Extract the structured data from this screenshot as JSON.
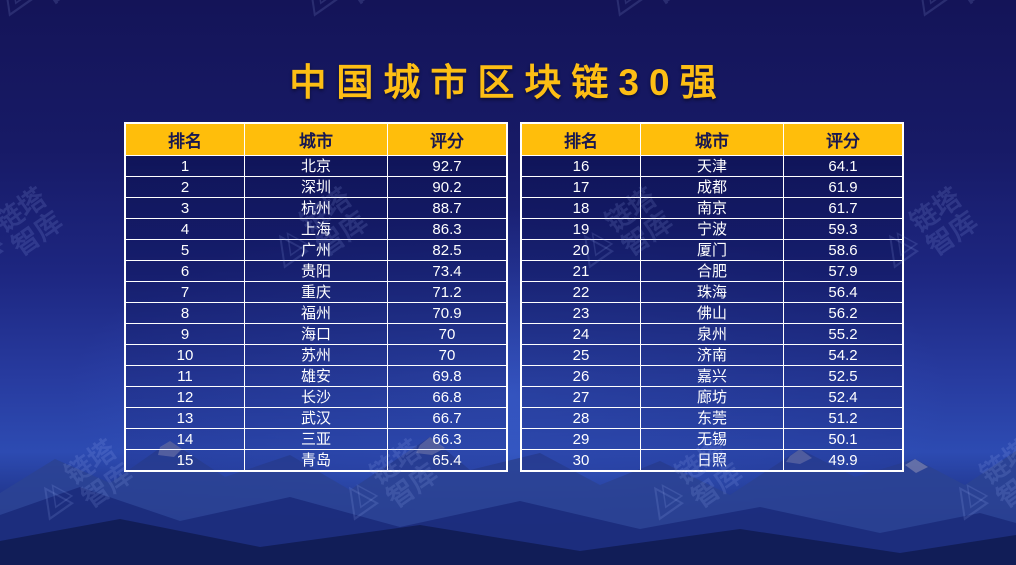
{
  "title": "中国城市区块链30强",
  "watermark": {
    "logo_glyph": "△",
    "text": "链塔智库"
  },
  "tables": [
    {
      "name": "ranks-1-15",
      "headers": [
        "排名",
        "城市",
        "评分"
      ],
      "rows": [
        [
          "1",
          "北京",
          "92.7"
        ],
        [
          "2",
          "深圳",
          "90.2"
        ],
        [
          "3",
          "杭州",
          "88.7"
        ],
        [
          "4",
          "上海",
          "86.3"
        ],
        [
          "5",
          "广州",
          "82.5"
        ],
        [
          "6",
          "贵阳",
          "73.4"
        ],
        [
          "7",
          "重庆",
          "71.2"
        ],
        [
          "8",
          "福州",
          "70.9"
        ],
        [
          "9",
          "海口",
          "70"
        ],
        [
          "10",
          "苏州",
          "70"
        ],
        [
          "11",
          "雄安",
          "69.8"
        ],
        [
          "12",
          "长沙",
          "66.8"
        ],
        [
          "13",
          "武汉",
          "66.7"
        ],
        [
          "14",
          "三亚",
          "66.3"
        ],
        [
          "15",
          "青岛",
          "65.4"
        ]
      ]
    },
    {
      "name": "ranks-16-30",
      "headers": [
        "排名",
        "城市",
        "评分"
      ],
      "rows": [
        [
          "16",
          "天津",
          "64.1"
        ],
        [
          "17",
          "成都",
          "61.9"
        ],
        [
          "18",
          "南京",
          "61.7"
        ],
        [
          "19",
          "宁波",
          "59.3"
        ],
        [
          "20",
          "厦门",
          "58.6"
        ],
        [
          "21",
          "合肥",
          "57.9"
        ],
        [
          "22",
          "珠海",
          "56.4"
        ],
        [
          "23",
          "佛山",
          "56.2"
        ],
        [
          "24",
          "泉州",
          "55.2"
        ],
        [
          "25",
          "济南",
          "54.2"
        ],
        [
          "26",
          "嘉兴",
          "52.5"
        ],
        [
          "27",
          "廊坊",
          "52.4"
        ],
        [
          "28",
          "东莞",
          "51.2"
        ],
        [
          "29",
          "无锡",
          "50.1"
        ],
        [
          "30",
          "日照",
          "49.9"
        ]
      ]
    }
  ],
  "chart_data": {
    "type": "table",
    "title": "中国城市区块链30强",
    "columns": [
      "排名",
      "城市",
      "评分"
    ],
    "rows": [
      [
        1,
        "北京",
        92.7
      ],
      [
        2,
        "深圳",
        90.2
      ],
      [
        3,
        "杭州",
        88.7
      ],
      [
        4,
        "上海",
        86.3
      ],
      [
        5,
        "广州",
        82.5
      ],
      [
        6,
        "贵阳",
        73.4
      ],
      [
        7,
        "重庆",
        71.2
      ],
      [
        8,
        "福州",
        70.9
      ],
      [
        9,
        "海口",
        70
      ],
      [
        10,
        "苏州",
        70
      ],
      [
        11,
        "雄安",
        69.8
      ],
      [
        12,
        "长沙",
        66.8
      ],
      [
        13,
        "武汉",
        66.7
      ],
      [
        14,
        "三亚",
        66.3
      ],
      [
        15,
        "青岛",
        65.4
      ],
      [
        16,
        "天津",
        64.1
      ],
      [
        17,
        "成都",
        61.9
      ],
      [
        18,
        "南京",
        61.7
      ],
      [
        19,
        "宁波",
        59.3
      ],
      [
        20,
        "厦门",
        58.6
      ],
      [
        21,
        "合肥",
        57.9
      ],
      [
        22,
        "珠海",
        56.4
      ],
      [
        23,
        "佛山",
        56.2
      ],
      [
        24,
        "泉州",
        55.2
      ],
      [
        25,
        "济南",
        54.2
      ],
      [
        26,
        "嘉兴",
        52.5
      ],
      [
        27,
        "廊坊",
        52.4
      ],
      [
        28,
        "东莞",
        51.2
      ],
      [
        29,
        "无锡",
        50.1
      ],
      [
        30,
        "日照",
        49.9
      ]
    ],
    "layout": "two side-by-side tables, ranks 1-15 left and 16-30 right",
    "accent_colors": {
      "header_bg": "#FFBE0B",
      "title_text": "#FDBE14",
      "rank_text": "#E5BE6F",
      "body_text": "#FFFFFF",
      "background": "#1a2070"
    }
  }
}
